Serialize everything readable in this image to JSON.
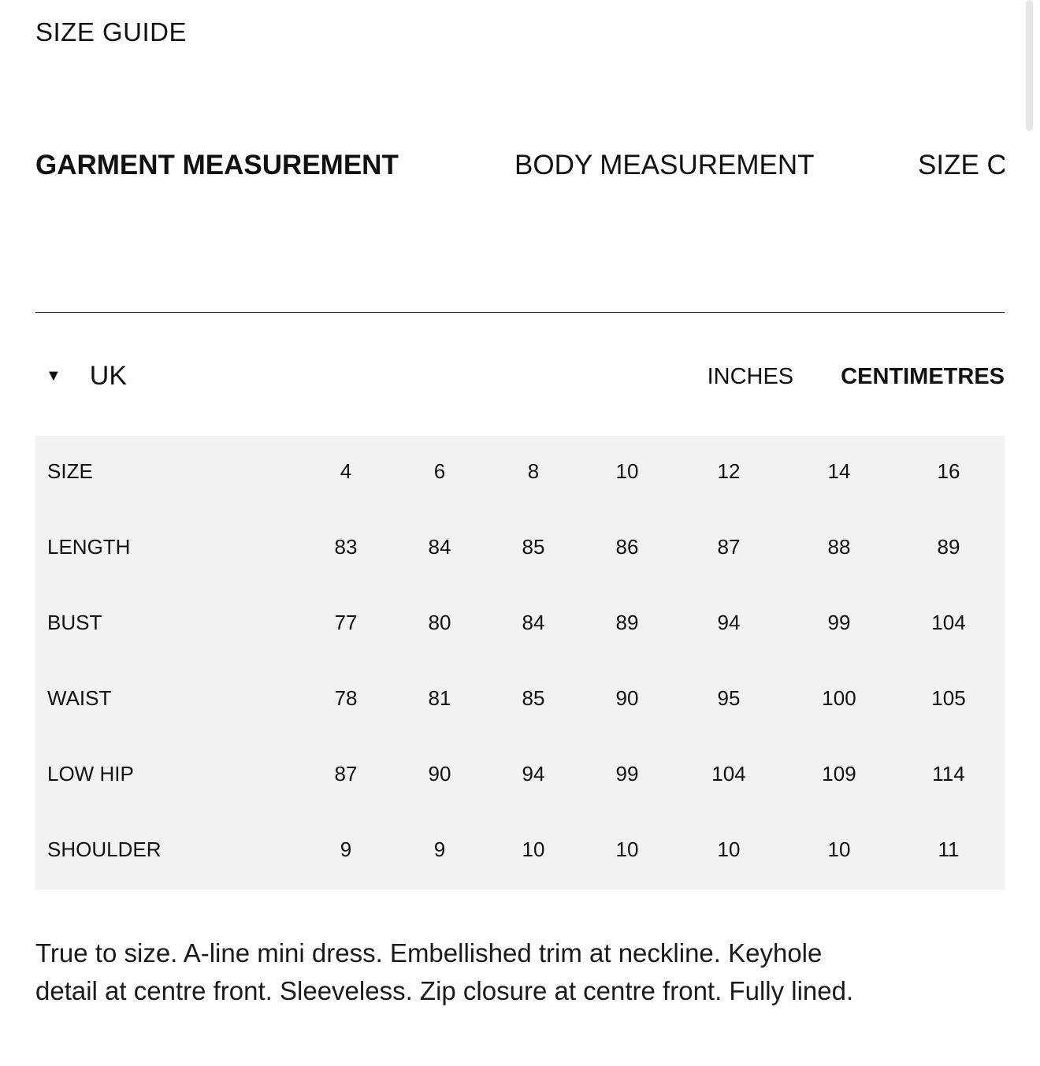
{
  "title": "SIZE GUIDE",
  "tabs": [
    {
      "label": "GARMENT MEASUREMENT",
      "active": true
    },
    {
      "label": "BODY MEASUREMENT",
      "active": false
    },
    {
      "label": "SIZE C",
      "active": false
    }
  ],
  "region": {
    "label": "UK",
    "icon": "triangle-down-icon"
  },
  "units": [
    {
      "label": "INCHES",
      "active": false
    },
    {
      "label": "CENTIMETRES",
      "active": true
    }
  ],
  "table": {
    "rows": [
      {
        "label": "SIZE",
        "values": [
          "4",
          "6",
          "8",
          "10",
          "12",
          "14",
          "16"
        ]
      },
      {
        "label": "LENGTH",
        "values": [
          "83",
          "84",
          "85",
          "86",
          "87",
          "88",
          "89"
        ]
      },
      {
        "label": "BUST",
        "values": [
          "77",
          "80",
          "84",
          "89",
          "94",
          "99",
          "104"
        ]
      },
      {
        "label": "WAIST",
        "values": [
          "78",
          "81",
          "85",
          "90",
          "95",
          "100",
          "105"
        ]
      },
      {
        "label": "LOW HIP",
        "values": [
          "87",
          "90",
          "94",
          "99",
          "104",
          "109",
          "114"
        ]
      },
      {
        "label": "SHOULDER",
        "values": [
          "9",
          "9",
          "10",
          "10",
          "10",
          "10",
          "11"
        ]
      }
    ]
  },
  "description": "True to size. A-line mini dress. Embellished trim at neckline. Keyhole detail at centre front. Sleeveless. Zip closure at centre front. Fully lined."
}
